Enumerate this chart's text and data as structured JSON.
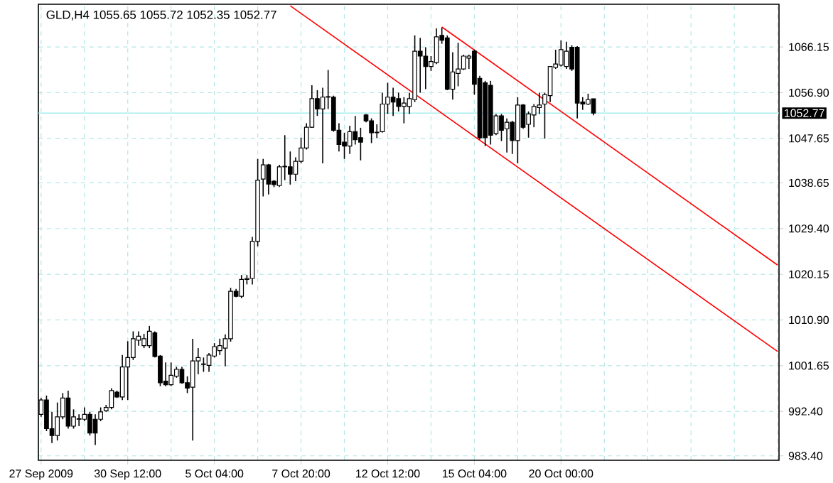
{
  "chart_data": {
    "type": "candlestick",
    "title": "GLD,H4  1055.65 1055.72 1052.35 1052.77",
    "categories": [
      "27 Sep 2009",
      null,
      null,
      null,
      null,
      null,
      null,
      null,
      null,
      null,
      null,
      null,
      null,
      null,
      null,
      null,
      "30 Sep 12:00",
      null,
      null,
      null,
      null,
      null,
      null,
      null,
      null,
      null,
      null,
      null,
      null,
      null,
      null,
      null,
      "5 Oct 04:00",
      null,
      null,
      null,
      null,
      null,
      null,
      null,
      null,
      null,
      null,
      null,
      null,
      null,
      null,
      null,
      "7 Oct 20:00",
      null,
      null,
      null,
      null,
      null,
      null,
      null,
      null,
      null,
      null,
      null,
      null,
      null,
      null,
      null,
      "12 Oct 12:00",
      null,
      null,
      null,
      null,
      null,
      null,
      null,
      null,
      null,
      null,
      null,
      null,
      null,
      null,
      null,
      "15 Oct 04:00",
      null,
      null,
      null,
      null,
      null,
      null,
      null,
      null,
      null,
      null,
      null,
      null,
      null,
      null,
      null,
      "20 Oct 00:00",
      null,
      null,
      null,
      null,
      null,
      null,
      null,
      null,
      null,
      null,
      null,
      null,
      null,
      null,
      null,
      null,
      null,
      null,
      null,
      null,
      null,
      null,
      null,
      null,
      null,
      null,
      null,
      null,
      null,
      null,
      null,
      null,
      null,
      null,
      null,
      null,
      null,
      null,
      null,
      null
    ],
    "ohlc": [
      [
        991.8,
        995.1,
        991.3,
        994.7
      ],
      [
        994.7,
        995.6,
        988.4,
        988.9
      ],
      [
        988.9,
        992.3,
        986.0,
        987.5
      ],
      [
        987.5,
        994.2,
        986.5,
        991.3
      ],
      [
        991.3,
        996.1,
        990.8,
        995.1
      ],
      [
        995.1,
        996.6,
        988.9,
        989.4
      ],
      [
        989.4,
        992.8,
        988.9,
        991.3
      ],
      [
        990.8,
        991.8,
        989.4,
        990.9
      ],
      [
        990.8,
        993.2,
        990.4,
        991.8
      ],
      [
        991.8,
        992.3,
        987.5,
        988.0
      ],
      [
        990.8,
        991.8,
        985.6,
        988.0
      ],
      [
        990.8,
        993.2,
        990.4,
        992.3
      ],
      [
        992.5,
        993.7,
        992.3,
        993.2
      ],
      [
        993.2,
        997.1,
        992.8,
        996.6
      ],
      [
        996.3,
        996.6,
        995.1,
        995.3
      ],
      [
        995.3,
        1003.8,
        994.7,
        1001.4
      ],
      [
        1001.4,
        1006.6,
        994.7,
        1003.3
      ],
      [
        1003.3,
        1008.6,
        1002.8,
        1007.1
      ],
      [
        1006.8,
        1008.6,
        1005.7,
        1007.6
      ],
      [
        1005.7,
        1008.1,
        1005.2,
        1007.1
      ],
      [
        1005.7,
        1009.7,
        1005.2,
        1008.6
      ],
      [
        1008.3,
        1008.6,
        1003.3,
        1003.5
      ],
      [
        1003.6,
        1003.8,
        997.5,
        998.2
      ],
      [
        998.5,
        1002.3,
        997.5,
        997.8
      ],
      [
        997.8,
        1002.3,
        997.5,
        999.7
      ],
      [
        999.5,
        1001.4,
        999.2,
        1000.9
      ],
      [
        1000.9,
        1001.4,
        998.0,
        998.2
      ],
      [
        998.2,
        999.5,
        996.1,
        997.1
      ],
      [
        997.3,
        1007.1,
        986.5,
        1002.6
      ],
      [
        1002.6,
        1005.2,
        999.9,
        1003.3
      ],
      [
        1001.9,
        1003.3,
        1000.4,
        1002.0
      ],
      [
        1001.7,
        1004.2,
        1000.4,
        1003.8
      ],
      [
        1003.6,
        1006.2,
        1003.3,
        1005.5
      ],
      [
        1004.7,
        1007.1,
        1003.8,
        1005.7
      ],
      [
        1005.2,
        1008.0,
        1001.5,
        1007.1
      ],
      [
        1007.1,
        1017.4,
        1006.5,
        1016.7
      ],
      [
        1016.7,
        1017.2,
        1015.5,
        1015.7
      ],
      [
        1015.7,
        1020.0,
        1015.3,
        1019.1
      ],
      [
        1019.1,
        1020.0,
        1018.1,
        1019.3
      ],
      [
        1019.3,
        1027.7,
        1018.1,
        1026.8
      ],
      [
        1026.8,
        1043.5,
        1025.8,
        1039.2
      ],
      [
        1039.4,
        1043.5,
        1035.9,
        1042.3
      ],
      [
        1042.3,
        1042.5,
        1036.3,
        1038.4
      ],
      [
        1039.0,
        1039.2,
        1037.8,
        1038.3
      ],
      [
        1038.1,
        1042.3,
        1037.8,
        1041.9
      ],
      [
        1041.9,
        1048.3,
        1039.2,
        1042.0
      ],
      [
        1041.9,
        1045.0,
        1038.3,
        1040.4
      ],
      [
        1040.4,
        1043.8,
        1039.0,
        1043.0
      ],
      [
        1043.0,
        1047.8,
        1042.6,
        1045.7
      ],
      [
        1045.7,
        1050.7,
        1045.4,
        1049.9
      ],
      [
        1049.9,
        1058.4,
        1049.8,
        1055.7
      ],
      [
        1055.7,
        1057.4,
        1052.2,
        1053.6
      ],
      [
        1053.6,
        1057.9,
        1042.6,
        1056.0
      ],
      [
        1056.0,
        1061.5,
        1053.6,
        1056.1
      ],
      [
        1056.0,
        1056.3,
        1049.0,
        1049.3
      ],
      [
        1049.3,
        1050.7,
        1045.0,
        1046.4
      ],
      [
        1046.9,
        1048.8,
        1043.5,
        1046.1
      ],
      [
        1046.1,
        1050.2,
        1044.5,
        1049.0
      ],
      [
        1049.0,
        1052.2,
        1046.4,
        1047.4
      ],
      [
        1047.8,
        1049.8,
        1043.2,
        1046.9
      ],
      [
        1052.4,
        1052.6,
        1050.9,
        1051.2
      ],
      [
        1051.2,
        1051.7,
        1046.7,
        1048.8
      ],
      [
        1048.8,
        1050.5,
        1047.7,
        1048.9
      ],
      [
        1049.0,
        1056.9,
        1048.8,
        1054.6
      ],
      [
        1054.6,
        1058.9,
        1052.6,
        1056.0
      ],
      [
        1056.0,
        1057.9,
        1052.2,
        1055.0
      ],
      [
        1055.7,
        1056.9,
        1053.1,
        1054.1
      ],
      [
        1054.1,
        1056.0,
        1050.7,
        1054.8
      ],
      [
        1054.1,
        1056.9,
        1052.6,
        1055.7
      ],
      [
        1055.5,
        1068.5,
        1055.0,
        1065.3
      ],
      [
        1065.3,
        1068.0,
        1056.9,
        1064.3
      ],
      [
        1064.3,
        1066.1,
        1057.6,
        1062.2
      ],
      [
        1062.2,
        1064.3,
        1061.3,
        1063.2
      ],
      [
        1063.0,
        1069.9,
        1062.7,
        1068.2
      ],
      [
        1068.5,
        1070.1,
        1066.8,
        1067.5
      ],
      [
        1068.0,
        1068.5,
        1057.4,
        1057.6
      ],
      [
        1057.6,
        1065.1,
        1055.5,
        1061.1
      ],
      [
        1060.8,
        1067.0,
        1058.2,
        1061.7
      ],
      [
        1061.7,
        1064.6,
        1061.5,
        1064.3
      ],
      [
        1063.9,
        1064.6,
        1061.7,
        1064.3
      ],
      [
        1065.3,
        1065.6,
        1056.5,
        1058.6
      ],
      [
        1059.8,
        1060.3,
        1047.4,
        1047.8
      ],
      [
        1058.9,
        1059.3,
        1046.1,
        1047.8
      ],
      [
        1058.4,
        1059.3,
        1046.4,
        1048.3
      ],
      [
        1048.6,
        1052.6,
        1048.3,
        1052.2
      ],
      [
        1052.2,
        1052.6,
        1047.1,
        1049.3
      ],
      [
        1049.6,
        1051.7,
        1044.8,
        1050.9
      ],
      [
        1050.9,
        1051.2,
        1044.5,
        1047.2
      ],
      [
        1047.2,
        1056.0,
        1042.6,
        1054.4
      ],
      [
        1054.4,
        1054.6,
        1049.6,
        1049.9
      ],
      [
        1050.5,
        1053.1,
        1047.8,
        1052.6
      ],
      [
        1052.4,
        1054.6,
        1049.9,
        1054.1
      ],
      [
        1053.9,
        1056.9,
        1052.6,
        1054.4
      ],
      [
        1054.6,
        1056.9,
        1047.6,
        1056.5
      ],
      [
        1056.3,
        1062.2,
        1055.0,
        1062.2
      ],
      [
        1062.0,
        1065.6,
        1061.7,
        1062.7
      ],
      [
        1062.5,
        1067.5,
        1062.2,
        1065.6
      ],
      [
        1062.2,
        1067.2,
        1061.7,
        1065.3
      ],
      [
        1066.1,
        1066.5,
        1061.3,
        1061.7
      ],
      [
        1066.1,
        1066.3,
        1051.7,
        1054.8
      ],
      [
        1055.0,
        1056.0,
        1053.4,
        1054.6
      ],
      [
        1054.6,
        1056.7,
        1054.4,
        1055.5
      ],
      [
        1055.65,
        1055.72,
        1052.35,
        1052.77
      ],
      null,
      null,
      null,
      null,
      null,
      null,
      null,
      null,
      null,
      null,
      null,
      null,
      null,
      null,
      null,
      null,
      null,
      null,
      null,
      null,
      null,
      null,
      null,
      null,
      null,
      null,
      null,
      null,
      null,
      null,
      null,
      null,
      null,
      null
    ],
    "series": [
      {
        "type": "line",
        "color": "#ff0000",
        "values": [
          null,
          null,
          null,
          null,
          null,
          null,
          null,
          null,
          null,
          null,
          null,
          null,
          null,
          null,
          null,
          null,
          null,
          null,
          null,
          null,
          null,
          null,
          null,
          null,
          null,
          null,
          null,
          null,
          null,
          null,
          null,
          null,
          null,
          null,
          null,
          null,
          null,
          null,
          null,
          null,
          null,
          null,
          null,
          null,
          null,
          null,
          1074.5,
          null,
          null,
          null,
          null,
          null,
          null,
          null,
          null,
          null,
          null,
          null,
          null,
          null,
          null,
          null,
          null,
          null,
          null,
          null,
          null,
          null,
          null,
          null,
          null,
          null,
          null,
          null,
          null,
          null,
          null,
          null,
          null,
          null,
          null,
          null,
          null,
          null,
          null,
          null,
          null,
          null,
          null,
          null,
          null,
          null,
          null,
          null,
          null,
          null,
          null,
          null,
          null,
          null,
          null,
          null,
          null,
          null,
          null,
          null,
          null,
          null,
          null,
          null,
          null,
          null,
          null,
          null,
          null,
          null,
          null,
          null,
          null,
          null,
          null,
          null,
          null,
          null,
          null,
          null,
          null,
          null,
          null,
          null,
          null,
          null,
          null,
          null,
          null,
          null,
          1004.5
        ]
      },
      {
        "type": "line",
        "color": "#ff0000",
        "values": [
          null,
          null,
          null,
          null,
          null,
          null,
          null,
          null,
          null,
          null,
          null,
          null,
          null,
          null,
          null,
          null,
          null,
          null,
          null,
          null,
          null,
          null,
          null,
          null,
          null,
          null,
          null,
          null,
          null,
          null,
          null,
          null,
          null,
          null,
          null,
          null,
          null,
          null,
          null,
          null,
          null,
          null,
          null,
          null,
          null,
          null,
          null,
          null,
          null,
          null,
          null,
          null,
          null,
          null,
          null,
          null,
          null,
          null,
          null,
          null,
          null,
          null,
          null,
          null,
          null,
          null,
          null,
          null,
          null,
          null,
          null,
          null,
          null,
          null,
          1070.2,
          null,
          null,
          null,
          null,
          null,
          null,
          null,
          null,
          null,
          null,
          null,
          null,
          null,
          null,
          null,
          null,
          null,
          null,
          null,
          null,
          null,
          null,
          null,
          null,
          null,
          null,
          null,
          null,
          null,
          null,
          null,
          null,
          null,
          null,
          null,
          null,
          null,
          null,
          null,
          null,
          null,
          null,
          null,
          null,
          null,
          null,
          null,
          null,
          null,
          null,
          null,
          null,
          null,
          null,
          null,
          null,
          null,
          null,
          null,
          null,
          null,
          1022.0
        ]
      }
    ],
    "ylim": [
      982.5,
      1074.8
    ],
    "yticks": [
      {
        "value": 983.4,
        "label": "983.40"
      },
      {
        "value": 992.4,
        "label": "992.40"
      },
      1001.65,
      {
        "value": 1010.9,
        "label": "1010.90"
      },
      1020.15,
      {
        "value": 1029.4,
        "label": "1029.40"
      },
      1038.65,
      1047.65,
      {
        "value": 1056.9,
        "label": "1056.90"
      },
      1066.15
    ],
    "ref_lines": [
      {
        "axis": "y",
        "value": 1052.77,
        "label": "1052.77",
        "color": "#a6eeee"
      }
    ],
    "grid": true
  }
}
